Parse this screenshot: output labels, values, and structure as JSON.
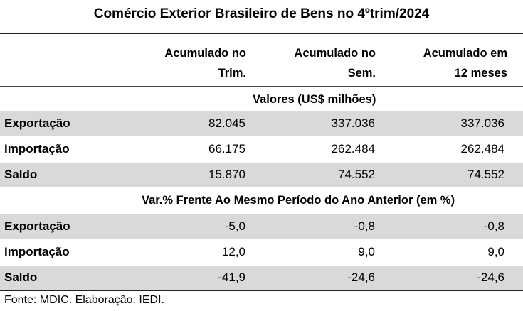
{
  "title": "Comércio Exterior Brasileiro de Bens no 4ºtrim/2024",
  "columns": [
    {
      "line1": "Acumulado no",
      "line2": "Trim."
    },
    {
      "line1": "Acumulado no",
      "line2": "Sem."
    },
    {
      "line1": "Acumulado em",
      "line2": "12 meses"
    }
  ],
  "sections": [
    {
      "heading": "Valores  (US$ milhões)",
      "rows": [
        {
          "label": "Exportação",
          "values": [
            "82.045",
            "337.036",
            "337.036"
          ]
        },
        {
          "label": "Importação",
          "values": [
            "66.175",
            "262.484",
            "262.484"
          ]
        },
        {
          "label": "Saldo",
          "values": [
            "15.870",
            "74.552",
            "74.552"
          ]
        }
      ]
    },
    {
      "heading": "Var.% Frente Ao Mesmo Período do Ano Anterior (em %)",
      "rows": [
        {
          "label": "Exportação",
          "values": [
            "-5,0",
            "-0,8",
            "-0,8"
          ]
        },
        {
          "label": "Importação",
          "values": [
            "12,0",
            "9,0",
            "9,0"
          ]
        },
        {
          "label": "Saldo",
          "values": [
            "-41,9",
            "-24,6",
            "-24,6"
          ]
        }
      ]
    }
  ],
  "footer": "Fonte: MDIC. Elaboração: IEDI.",
  "colors": {
    "row_shade": "#d9d9d9",
    "rule": "#222222"
  }
}
